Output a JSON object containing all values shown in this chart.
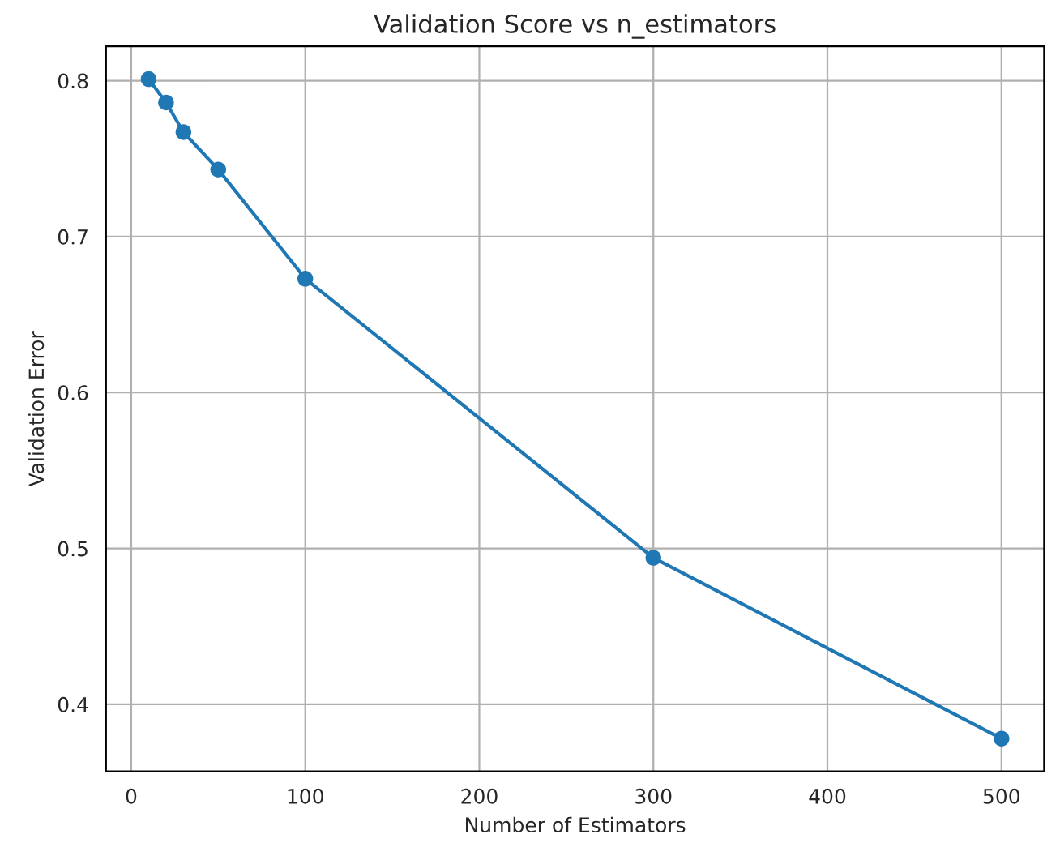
{
  "chart_data": {
    "type": "line",
    "title": "Validation Score vs n_estimators",
    "xlabel": "Number of Estimators",
    "ylabel": "Validation Error",
    "x": [
      10,
      20,
      30,
      50,
      100,
      300,
      500
    ],
    "series": [
      {
        "color": "#1f77b4",
        "values": [
          0.801,
          0.786,
          0.767,
          0.743,
          0.673,
          0.494,
          0.378
        ]
      }
    ],
    "xlim": [
      -14.5,
      524.5
    ],
    "ylim": [
      0.357,
      0.822
    ],
    "xticks": [
      0,
      100,
      200,
      300,
      400,
      500
    ],
    "yticks": [
      0.4,
      0.5,
      0.6,
      0.7,
      0.8
    ],
    "grid": true,
    "marker": "circle",
    "line_style": "solid"
  }
}
